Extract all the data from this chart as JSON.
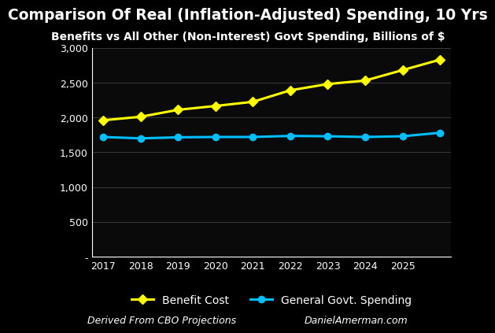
{
  "title": "Comparison Of Real (Inflation-Adjusted) Spending, 10 Yrs",
  "subtitle": "Benefits vs All Other (Non-Interest) Govt Spending, Billions of $",
  "footnote_left": "Derived From CBO Projections",
  "footnote_right": "DanielAmerman.com",
  "years": [
    2017,
    2018,
    2019,
    2020,
    2021,
    2022,
    2023,
    2024,
    2025,
    2026
  ],
  "xtick_years": [
    2017,
    2018,
    2019,
    2020,
    2021,
    2022,
    2023,
    2024,
    2025
  ],
  "benefit_cost": [
    1960,
    2010,
    2110,
    2165,
    2225,
    2390,
    2480,
    2530,
    2680,
    2830
  ],
  "general_spending": [
    1720,
    1700,
    1715,
    1720,
    1720,
    1735,
    1730,
    1720,
    1730,
    1780
  ],
  "benefit_color": "#FFFF00",
  "general_color": "#00BFFF",
  "background_color": "#000000",
  "plot_bg_color": "#0a0a0a",
  "grid_color": "#3a3a3a",
  "text_color": "#FFFFFF",
  "ylim": [
    0,
    3000
  ],
  "yticks": [
    0,
    500,
    1000,
    1500,
    2000,
    2500,
    3000
  ],
  "ytick_labels": [
    "-",
    "500",
    "1,000",
    "1,500",
    "2,000",
    "2,500",
    "3,000"
  ],
  "title_fontsize": 13.5,
  "subtitle_fontsize": 10,
  "legend_fontsize": 10,
  "footnote_fontsize": 9,
  "tick_fontsize": 9,
  "line_width": 2.2,
  "marker_size": 6
}
